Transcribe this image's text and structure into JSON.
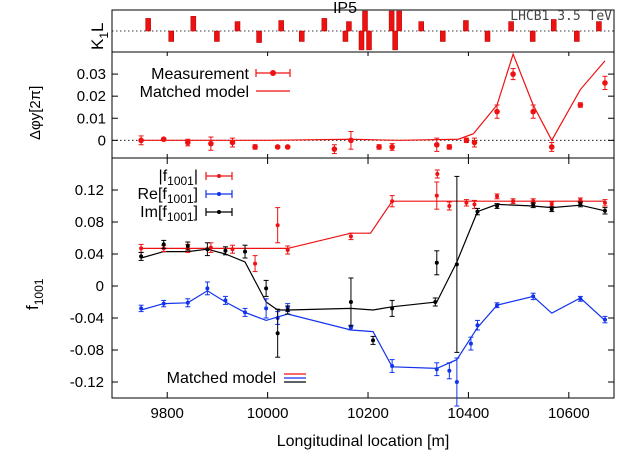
{
  "figure": {
    "run_label": "LHCB1 3.5 TeV",
    "ip_label": "IP5",
    "xlabel": "Longitudinal location [m]",
    "xlim": [
      9690,
      10690
    ],
    "xticks": [
      9800,
      10000,
      10200,
      10400,
      10600
    ]
  },
  "colors": {
    "red": "#ee1111",
    "blue": "#1133ee",
    "black": "#000000"
  },
  "chart_data": [
    {
      "type": "bar",
      "panel": "k1l",
      "ylabel_main": "K",
      "ylabel_sub": "1",
      "ylabel_tail": "L",
      "ylim": [
        -1,
        1
      ],
      "magnets": [
        {
          "x": 9762,
          "v": 0.6
        },
        {
          "x": 9808,
          "v": -0.5
        },
        {
          "x": 9852,
          "v": 0.7
        },
        {
          "x": 9899,
          "v": -0.5
        },
        {
          "x": 9940,
          "v": 0.45
        },
        {
          "x": 9983,
          "v": -0.55
        },
        {
          "x": 10027,
          "v": 0.5
        },
        {
          "x": 10068,
          "v": -0.5
        },
        {
          "x": 10113,
          "v": 0.6
        },
        {
          "x": 10155,
          "v": -0.5
        },
        {
          "x": 10162,
          "v": 0.45
        },
        {
          "x": 10187,
          "v": -0.9
        },
        {
          "x": 10194,
          "v": 0.95
        },
        {
          "x": 10202,
          "v": -0.9
        },
        {
          "x": 10247,
          "v": 0.95
        },
        {
          "x": 10254,
          "v": -0.9
        },
        {
          "x": 10262,
          "v": 0.95
        },
        {
          "x": 10306,
          "v": 0.45
        },
        {
          "x": 10349,
          "v": -0.5
        },
        {
          "x": 10395,
          "v": 0.5
        },
        {
          "x": 10438,
          "v": -0.5
        },
        {
          "x": 10485,
          "v": 0.45
        },
        {
          "x": 10528,
          "v": -0.5
        },
        {
          "x": 10570,
          "v": 0.55
        },
        {
          "x": 10616,
          "v": -0.5
        },
        {
          "x": 10660,
          "v": 0.45
        }
      ]
    },
    {
      "type": "line",
      "panel": "dphi",
      "ylabel": "Δφy[2π]",
      "ylim": [
        -0.008,
        0.04
      ],
      "yticks": [
        0,
        0.01,
        0.02,
        0.03
      ],
      "yticklabels": [
        "0",
        "0.01",
        "0.02",
        "0.03"
      ],
      "legend": [
        "Measurement",
        "Matched model"
      ],
      "measurement": [
        {
          "x": 9748,
          "y": 0.0,
          "e": 0.002
        },
        {
          "x": 9793,
          "y": 0.0005,
          "e": 0.0005
        },
        {
          "x": 9841,
          "y": -0.001,
          "e": 0.0015
        },
        {
          "x": 9887,
          "y": -0.0015,
          "e": 0.003
        },
        {
          "x": 9930,
          "y": -0.001,
          "e": 0.002
        },
        {
          "x": 9975,
          "y": -0.003,
          "e": 0.001
        },
        {
          "x": 10020,
          "y": -0.003,
          "e": 0.0005
        },
        {
          "x": 10040,
          "y": -0.003,
          "e": 0.0005
        },
        {
          "x": 10133,
          "y": -0.004,
          "e": 0.002
        },
        {
          "x": 10166,
          "y": 0.0,
          "e": 0.004
        },
        {
          "x": 10222,
          "y": -0.003,
          "e": 0.001
        },
        {
          "x": 10248,
          "y": -0.003,
          "e": 0.0015
        },
        {
          "x": 10337,
          "y": -0.002,
          "e": 0.003
        },
        {
          "x": 10362,
          "y": -0.003,
          "e": 0.001
        },
        {
          "x": 10396,
          "y": 0.0,
          "e": 0.001
        },
        {
          "x": 10412,
          "y": -0.001,
          "e": 0.002
        },
        {
          "x": 10457,
          "y": 0.013,
          "e": 0.003
        },
        {
          "x": 10489,
          "y": 0.03,
          "e": 0.0025
        },
        {
          "x": 10529,
          "y": 0.013,
          "e": 0.003
        },
        {
          "x": 10566,
          "y": -0.003,
          "e": 0.002
        },
        {
          "x": 10623,
          "y": 0.016,
          "e": 0.001
        },
        {
          "x": 10672,
          "y": 0.026,
          "e": 0.003
        }
      ],
      "model": [
        {
          "x": 9748,
          "y": 0.0
        },
        {
          "x": 10000,
          "y": 0.0
        },
        {
          "x": 10166,
          "y": 0.0005
        },
        {
          "x": 10260,
          "y": 0.0
        },
        {
          "x": 10380,
          "y": 0.0005
        },
        {
          "x": 10410,
          "y": 0.003
        },
        {
          "x": 10457,
          "y": 0.016
        },
        {
          "x": 10489,
          "y": 0.039
        },
        {
          "x": 10529,
          "y": 0.016
        },
        {
          "x": 10566,
          "y": 0.0
        },
        {
          "x": 10623,
          "y": 0.023
        },
        {
          "x": 10672,
          "y": 0.036
        }
      ]
    },
    {
      "type": "line",
      "panel": "f1001",
      "ylabel_main": "f",
      "ylabel_sub": "1001",
      "ylim": [
        -0.14,
        0.16
      ],
      "yticks": [
        -0.12,
        -0.08,
        -0.04,
        0,
        0.04,
        0.08,
        0.12
      ],
      "yticklabels": [
        "-0.12",
        "-0.08",
        "-0.04",
        "0",
        "0.04",
        "0.08",
        "0.12"
      ],
      "legend_model": "Matched model",
      "series": [
        {
          "name_pre": "|f",
          "name_sub": "1001",
          "name_post": "|",
          "color": "red",
          "points": [
            {
              "x": 9748,
              "y": 0.047,
              "e": 0.005
            },
            {
              "x": 9793,
              "y": 0.047,
              "e": 0.004
            },
            {
              "x": 9841,
              "y": 0.047,
              "e": 0.005
            },
            {
              "x": 9887,
              "y": 0.048,
              "e": 0.006
            },
            {
              "x": 9930,
              "y": 0.046,
              "e": 0.005
            },
            {
              "x": 9975,
              "y": 0.028,
              "e": 0.01
            },
            {
              "x": 10020,
              "y": 0.076,
              "e": 0.022
            },
            {
              "x": 10040,
              "y": 0.045,
              "e": 0.005
            },
            {
              "x": 10166,
              "y": 0.062,
              "e": 0.004
            },
            {
              "x": 10248,
              "y": 0.106,
              "e": 0.007
            },
            {
              "x": 10337,
              "y": 0.113,
              "e": 0.017
            },
            {
              "x": 10338,
              "y": 0.14,
              "e": 0.005
            },
            {
              "x": 10362,
              "y": 0.1,
              "e": 0.005
            },
            {
              "x": 10396,
              "y": 0.104,
              "e": 0.004
            },
            {
              "x": 10412,
              "y": 0.102,
              "e": 0.005
            },
            {
              "x": 10457,
              "y": 0.112,
              "e": 0.003
            },
            {
              "x": 10489,
              "y": 0.106,
              "e": 0.003
            },
            {
              "x": 10529,
              "y": 0.106,
              "e": 0.003
            },
            {
              "x": 10566,
              "y": 0.102,
              "e": 0.003
            },
            {
              "x": 10623,
              "y": 0.107,
              "e": 0.003
            },
            {
              "x": 10672,
              "y": 0.104,
              "e": 0.004
            }
          ],
          "model": [
            {
              "x": 9748,
              "y": 0.047
            },
            {
              "x": 10040,
              "y": 0.047
            },
            {
              "x": 10166,
              "y": 0.066
            },
            {
              "x": 10205,
              "y": 0.066
            },
            {
              "x": 10248,
              "y": 0.106
            },
            {
              "x": 10672,
              "y": 0.106
            }
          ]
        },
        {
          "name_pre": "Re[f",
          "name_sub": "1001",
          "name_post": "]",
          "color": "blue",
          "points": [
            {
              "x": 9748,
              "y": -0.028,
              "e": 0.004
            },
            {
              "x": 9793,
              "y": -0.022,
              "e": 0.004
            },
            {
              "x": 9841,
              "y": -0.021,
              "e": 0.005
            },
            {
              "x": 9880,
              "y": -0.003,
              "e": 0.008
            },
            {
              "x": 9916,
              "y": -0.018,
              "e": 0.005
            },
            {
              "x": 9955,
              "y": -0.033,
              "e": 0.005
            },
            {
              "x": 9997,
              "y": -0.028,
              "e": 0.012
            },
            {
              "x": 10020,
              "y": -0.04,
              "e": 0.008
            },
            {
              "x": 10040,
              "y": -0.027,
              "e": 0.005
            },
            {
              "x": 10166,
              "y": -0.052,
              "e": 0.003
            },
            {
              "x": 10248,
              "y": -0.1,
              "e": 0.008
            },
            {
              "x": 10337,
              "y": -0.104,
              "e": 0.008
            },
            {
              "x": 10362,
              "y": -0.106,
              "e": 0.01
            },
            {
              "x": 10377,
              "y": -0.12,
              "e": 0.03
            },
            {
              "x": 10405,
              "y": -0.072,
              "e": 0.008
            },
            {
              "x": 10418,
              "y": -0.049,
              "e": 0.006
            },
            {
              "x": 10457,
              "y": -0.024,
              "e": 0.003
            },
            {
              "x": 10529,
              "y": -0.013,
              "e": 0.004
            },
            {
              "x": 10623,
              "y": -0.016,
              "e": 0.003
            },
            {
              "x": 10672,
              "y": -0.042,
              "e": 0.004
            }
          ],
          "model": [
            {
              "x": 9748,
              "y": -0.03
            },
            {
              "x": 9793,
              "y": -0.022
            },
            {
              "x": 9841,
              "y": -0.021
            },
            {
              "x": 9880,
              "y": -0.006
            },
            {
              "x": 9916,
              "y": -0.02
            },
            {
              "x": 9955,
              "y": -0.033
            },
            {
              "x": 9997,
              "y": -0.043
            },
            {
              "x": 10040,
              "y": -0.035
            },
            {
              "x": 10166,
              "y": -0.055
            },
            {
              "x": 10210,
              "y": -0.057
            },
            {
              "x": 10248,
              "y": -0.101
            },
            {
              "x": 10337,
              "y": -0.103
            },
            {
              "x": 10377,
              "y": -0.092
            },
            {
              "x": 10418,
              "y": -0.052
            },
            {
              "x": 10457,
              "y": -0.024
            },
            {
              "x": 10529,
              "y": -0.013
            },
            {
              "x": 10566,
              "y": -0.034
            },
            {
              "x": 10623,
              "y": -0.015
            },
            {
              "x": 10672,
              "y": -0.043
            }
          ]
        },
        {
          "name_pre": "Im[f",
          "name_sub": "1001",
          "name_post": "]",
          "color": "black",
          "points": [
            {
              "x": 9748,
              "y": 0.037,
              "e": 0.005
            },
            {
              "x": 9793,
              "y": 0.052,
              "e": 0.005
            },
            {
              "x": 9841,
              "y": 0.05,
              "e": 0.005
            },
            {
              "x": 9880,
              "y": 0.046,
              "e": 0.008
            },
            {
              "x": 9916,
              "y": 0.044,
              "e": 0.005
            },
            {
              "x": 9955,
              "y": 0.043,
              "e": 0.008
            },
            {
              "x": 9997,
              "y": -0.003,
              "e": 0.01
            },
            {
              "x": 10020,
              "y": -0.059,
              "e": 0.03
            },
            {
              "x": 10040,
              "y": -0.03,
              "e": 0.005
            },
            {
              "x": 10166,
              "y": -0.02,
              "e": 0.03
            },
            {
              "x": 10210,
              "y": -0.068,
              "e": 0.005
            },
            {
              "x": 10248,
              "y": -0.028,
              "e": 0.01
            },
            {
              "x": 10334,
              "y": -0.02,
              "e": 0.005
            },
            {
              "x": 10337,
              "y": 0.029,
              "e": 0.015
            },
            {
              "x": 10377,
              "y": 0.027,
              "e": 0.11
            },
            {
              "x": 10418,
              "y": 0.093,
              "e": 0.004
            },
            {
              "x": 10457,
              "y": 0.1,
              "e": 0.003
            },
            {
              "x": 10529,
              "y": 0.101,
              "e": 0.003
            },
            {
              "x": 10566,
              "y": 0.096,
              "e": 0.003
            },
            {
              "x": 10623,
              "y": 0.102,
              "e": 0.003
            },
            {
              "x": 10672,
              "y": 0.094,
              "e": 0.004
            }
          ],
          "model": [
            {
              "x": 9748,
              "y": 0.035
            },
            {
              "x": 9793,
              "y": 0.043
            },
            {
              "x": 9841,
              "y": 0.043
            },
            {
              "x": 9880,
              "y": 0.046
            },
            {
              "x": 9916,
              "y": 0.04
            },
            {
              "x": 9955,
              "y": 0.03
            },
            {
              "x": 9997,
              "y": -0.02
            },
            {
              "x": 10020,
              "y": -0.03
            },
            {
              "x": 10040,
              "y": -0.03
            },
            {
              "x": 10166,
              "y": -0.028
            },
            {
              "x": 10210,
              "y": -0.03
            },
            {
              "x": 10248,
              "y": -0.026
            },
            {
              "x": 10337,
              "y": -0.02
            },
            {
              "x": 10377,
              "y": 0.03
            },
            {
              "x": 10418,
              "y": 0.093
            },
            {
              "x": 10457,
              "y": 0.102
            },
            {
              "x": 10529,
              "y": 0.1
            },
            {
              "x": 10566,
              "y": 0.098
            },
            {
              "x": 10623,
              "y": 0.101
            },
            {
              "x": 10672,
              "y": 0.094
            }
          ]
        }
      ]
    }
  ]
}
